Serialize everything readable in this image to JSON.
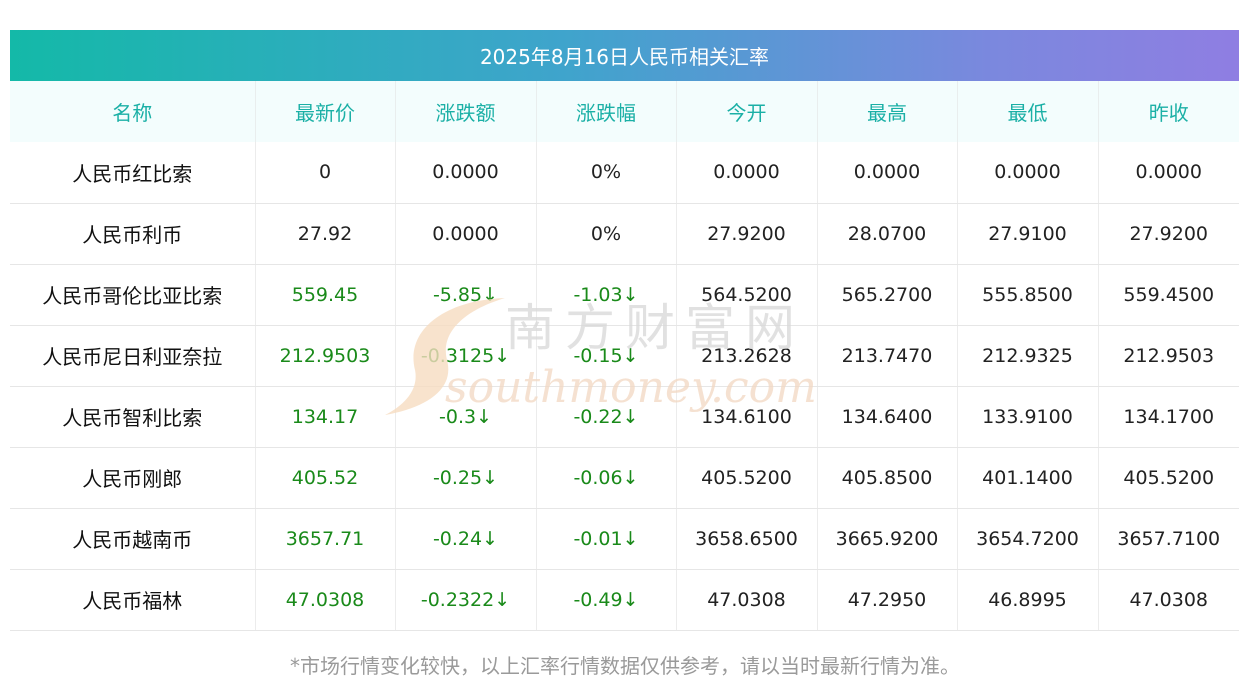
{
  "title": "2025年8月16日人民币相关汇率",
  "columns": [
    "名称",
    "最新价",
    "涨跌额",
    "涨跌幅",
    "今开",
    "最高",
    "最低",
    "昨收"
  ],
  "rows": [
    {
      "name": "人民币红比索",
      "latest": "0",
      "change": "0.0000",
      "change_pct": "0%",
      "open": "0.0000",
      "high": "0.0000",
      "low": "0.0000",
      "prev_close": "0.0000",
      "down": false
    },
    {
      "name": "人民币利币",
      "latest": "27.92",
      "change": "0.0000",
      "change_pct": "0%",
      "open": "27.9200",
      "high": "28.0700",
      "low": "27.9100",
      "prev_close": "27.9200",
      "down": false
    },
    {
      "name": "人民币哥伦比亚比索",
      "latest": "559.45",
      "change": "-5.85↓",
      "change_pct": "-1.03↓",
      "open": "564.5200",
      "high": "565.2700",
      "low": "555.8500",
      "prev_close": "559.4500",
      "down": true
    },
    {
      "name": "人民币尼日利亚奈拉",
      "latest": "212.9503",
      "change": "-0.3125↓",
      "change_pct": "-0.15↓",
      "open": "213.2628",
      "high": "213.7470",
      "low": "212.9325",
      "prev_close": "212.9503",
      "down": true
    },
    {
      "name": "人民币智利比索",
      "latest": "134.17",
      "change": "-0.3↓",
      "change_pct": "-0.22↓",
      "open": "134.6100",
      "high": "134.6400",
      "low": "133.9100",
      "prev_close": "134.1700",
      "down": true
    },
    {
      "name": "人民币刚郎",
      "latest": "405.52",
      "change": "-0.25↓",
      "change_pct": "-0.06↓",
      "open": "405.5200",
      "high": "405.8500",
      "low": "401.1400",
      "prev_close": "405.5200",
      "down": true
    },
    {
      "name": "人民币越南币",
      "latest": "3657.71",
      "change": "-0.24↓",
      "change_pct": "-0.01↓",
      "open": "3658.6500",
      "high": "3665.9200",
      "low": "3654.7200",
      "prev_close": "3657.7100",
      "down": true
    },
    {
      "name": "人民币福林",
      "latest": "47.0308",
      "change": "-0.2322↓",
      "change_pct": "-0.49↓",
      "open": "47.0308",
      "high": "47.2950",
      "low": "46.8995",
      "prev_close": "47.0308",
      "down": true
    }
  ],
  "colors": {
    "header_text": "#1bb0a6",
    "down": "#1a8a1a",
    "title_gradient_start": "#14b9a8",
    "title_gradient_end": "#8f7ee2"
  },
  "watermark": {
    "cn": "南方财富网",
    "en": "southmoney.com"
  },
  "footnote": "*市场行情变化较快，以上汇率行情数据仅供参考，请以当时最新行情为准。"
}
